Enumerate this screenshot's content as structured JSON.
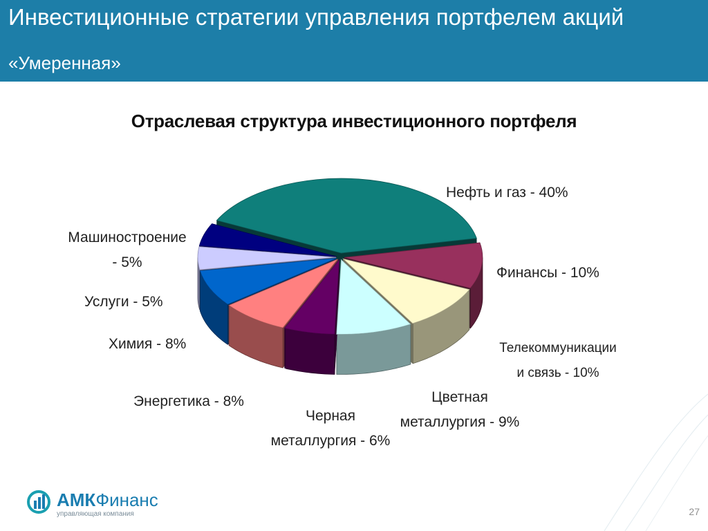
{
  "header": {
    "title": "Инвестиционные стратегии управления портфелем акций",
    "subtitle": "«Умеренная»",
    "background": "#1d7ea8"
  },
  "chart_data": {
    "type": "pie",
    "title": "Отраслевая структура инвестиционного портфеля",
    "slices": [
      {
        "name": "Нефть и газ",
        "value": 40,
        "color": "#0f7f7b"
      },
      {
        "name": "Финансы",
        "value": 10,
        "color": "#98305d"
      },
      {
        "name": "Телекоммуникации и связь",
        "value": 10,
        "color": "#fffacc"
      },
      {
        "name": "Цветная металлургия",
        "value": 9,
        "color": "#ccffff"
      },
      {
        "name": "Черная металлургия",
        "value": 6,
        "color": "#640064"
      },
      {
        "name": "Энергетика",
        "value": 8,
        "color": "#ff8080"
      },
      {
        "name": "Химия",
        "value": 8,
        "color": "#0066cc"
      },
      {
        "name": "Услуги",
        "value": 5,
        "color": "#ccccff"
      },
      {
        "name": "Машиностроение",
        "value": 5,
        "color": "#000080"
      }
    ],
    "labels": {
      "oil": [
        "Нефть и газ - 40%"
      ],
      "fin": [
        "Финансы - 10%"
      ],
      "tel": [
        "Телекоммуникации",
        "и связь - 10%"
      ],
      "nonfer": [
        "Цветная",
        "металлургия - 9%"
      ],
      "ferr": [
        "Черная",
        "металлургия - 6%"
      ],
      "energy": [
        "Энергетика - 8%"
      ],
      "chem": [
        "Химия - 8%"
      ],
      "serv": [
        "Услуги - 5%"
      ],
      "mach": [
        "Машиностроение",
        "- 5%"
      ]
    }
  },
  "footer": {
    "logo_brand_bold": "АМК",
    "logo_brand_rest": "Финанс",
    "logo_tagline": "управляющая компания",
    "page_number": "27"
  }
}
